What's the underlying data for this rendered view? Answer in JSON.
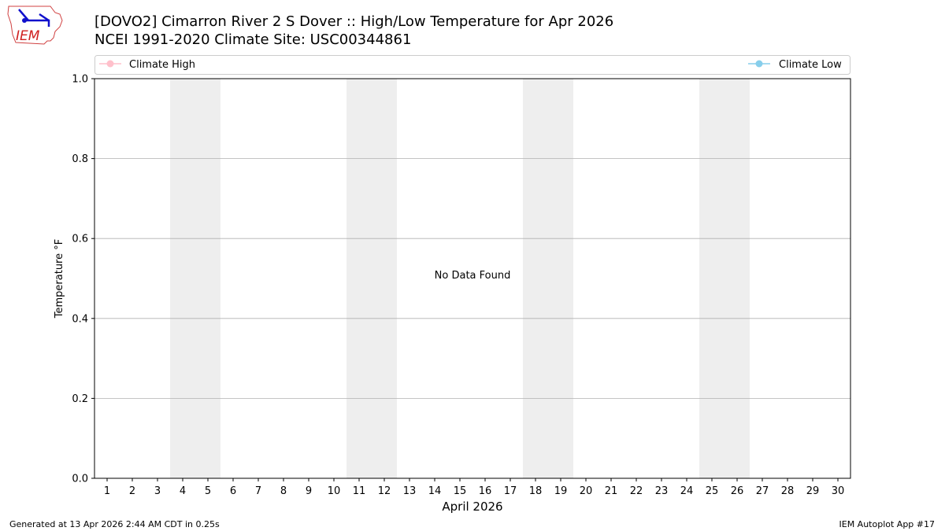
{
  "logo": {
    "text": "IEM"
  },
  "title_line1": "[DOVO2] Cimarron River 2 S Dover :: High/Low Temperature for Apr 2026",
  "title_line2": "NCEI 1991-2020 Climate Site: USC00344861",
  "footer": {
    "left": "Generated at 13 Apr 2026 2:44 AM CDT in 0.25s",
    "right": "IEM Autoplot App #17"
  },
  "chart_data": {
    "type": "line",
    "xlabel": "April 2026",
    "ylabel": "Temperature °F",
    "xlim": [
      0.5,
      30.5
    ],
    "ylim": [
      0,
      1
    ],
    "x_ticks": [
      1,
      2,
      3,
      4,
      5,
      6,
      7,
      8,
      9,
      10,
      11,
      12,
      13,
      14,
      15,
      16,
      17,
      18,
      19,
      20,
      21,
      22,
      23,
      24,
      25,
      26,
      27,
      28,
      29,
      30
    ],
    "y_ticks": [
      "0.0",
      "0.2",
      "0.4",
      "0.6",
      "0.8",
      "1.0"
    ],
    "grid": "horizontal",
    "shaded_spans": [
      [
        3.5,
        5.5
      ],
      [
        10.5,
        12.5
      ],
      [
        17.5,
        19.5
      ],
      [
        24.5,
        26.5
      ]
    ],
    "shade_color": "#eeeeee",
    "annotation": "No Data Found",
    "legend_placement": "top",
    "series": [
      {
        "name": "Climate High",
        "color": "#ffc0cb",
        "values": []
      },
      {
        "name": "Climate Low",
        "color": "#87ceeb",
        "values": []
      }
    ]
  }
}
